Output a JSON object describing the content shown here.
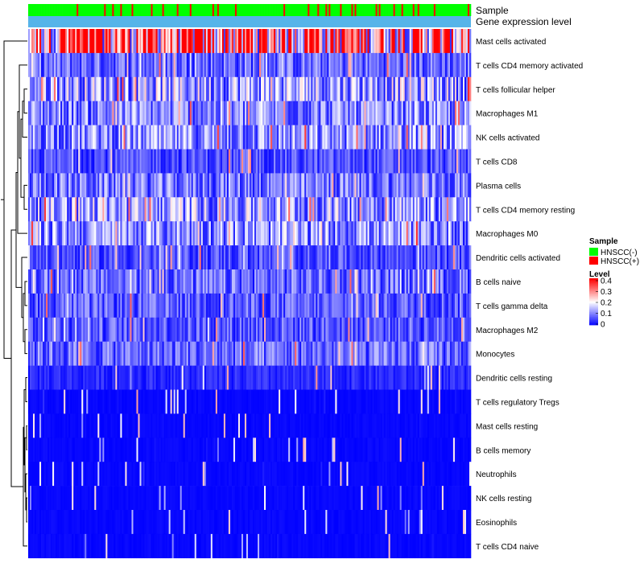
{
  "chart_data": {
    "type": "heatmap",
    "rows": [
      "Mast cells activated",
      "T cells CD4 memory activated",
      "T cells follicular helper",
      "Macrophages M1",
      "NK cells activated",
      "T cells CD8",
      "Plasma cells",
      "T cells CD4 memory resting",
      "Macrophages M0",
      "Dendritic cells activated",
      "B cells naive",
      "T cells gamma delta",
      "Macrophages M2",
      "Monocytes",
      "Dendritic cells resting",
      "T cells regulatory  Tregs",
      "Mast cells resting",
      "B cells memory",
      "Neutrophils",
      "NK cells resting",
      "Eosinophils",
      "T cells CD4 naive"
    ],
    "row_mean_levels": [
      0.3,
      0.08,
      0.13,
      0.1,
      0.11,
      0.06,
      0.09,
      0.12,
      0.11,
      0.06,
      0.08,
      0.07,
      0.07,
      0.08,
      0.03,
      0.02,
      0.01,
      0.01,
      0.02,
      0.01,
      0.005,
      0.01
    ],
    "num_samples": 274,
    "sample_group_counts": {
      "HNSCC(-)": 246,
      "HNSCC(+)": 28
    },
    "annotation_rows": [
      {
        "label": "Sample",
        "color": "#00FF00"
      },
      {
        "label": "Gene expression level",
        "color": "#56B4E9"
      }
    ],
    "legend": {
      "sample_title": "Sample",
      "sample_groups": [
        {
          "label": "HNSCC(-)",
          "color": "#00FF00"
        },
        {
          "label": "HNSCC(+)",
          "color": "#FF0000"
        }
      ],
      "level_title": "Level",
      "level_ticks": [
        "0.4",
        "0.3",
        "0.2",
        "0.1",
        "0"
      ],
      "level_range": [
        0,
        0.4
      ]
    },
    "colors": {
      "low": "#0000FF",
      "mid": "#FFFFFF",
      "high": "#FF0000",
      "dendrogram": "#000000"
    }
  }
}
